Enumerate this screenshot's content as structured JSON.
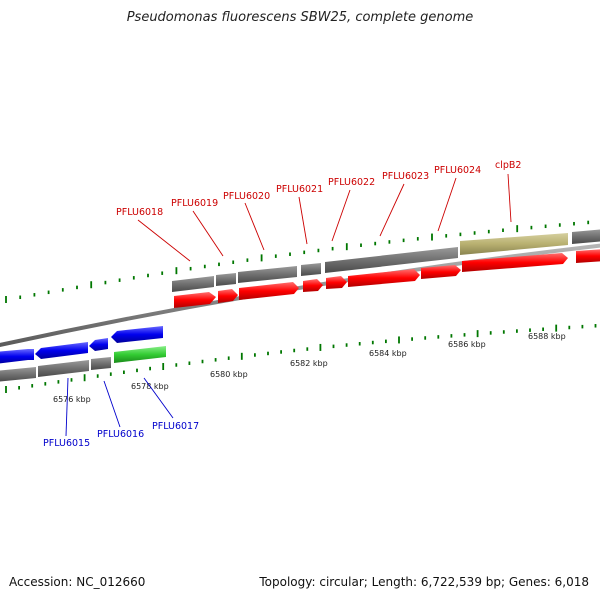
{
  "title": "Pseudomonas fluorescens SBW25, complete genome",
  "accession": "Accession: NC_012660",
  "summary": "Topology: circular; Length: 6,722,539 bp; Genes: 6,018",
  "kbp_labels": [
    "6576 kbp",
    "6578 kbp",
    "6580 kbp",
    "6582 kbp",
    "6584 kbp",
    "6586 kbp",
    "6588 kbp"
  ],
  "forward_gene_labels": [
    "PFLU6018",
    "PFLU6019",
    "PFLU6020",
    "PFLU6021",
    "PFLU6022",
    "PFLU6023",
    "PFLU6024",
    "clpB2"
  ],
  "reverse_gene_labels": [
    "PFLU6015",
    "PFLU6016",
    "PFLU6017"
  ],
  "colors": {
    "forward_cds": "#ff0000",
    "reverse_cds": "#0000ee",
    "rna": "#33cc33",
    "gene": "#707070",
    "special_gene": "#b8b070",
    "tick": "#007700",
    "backbone": "#8a8a8a",
    "forward_label": "#cc0000",
    "reverse_label": "#0000cc"
  }
}
